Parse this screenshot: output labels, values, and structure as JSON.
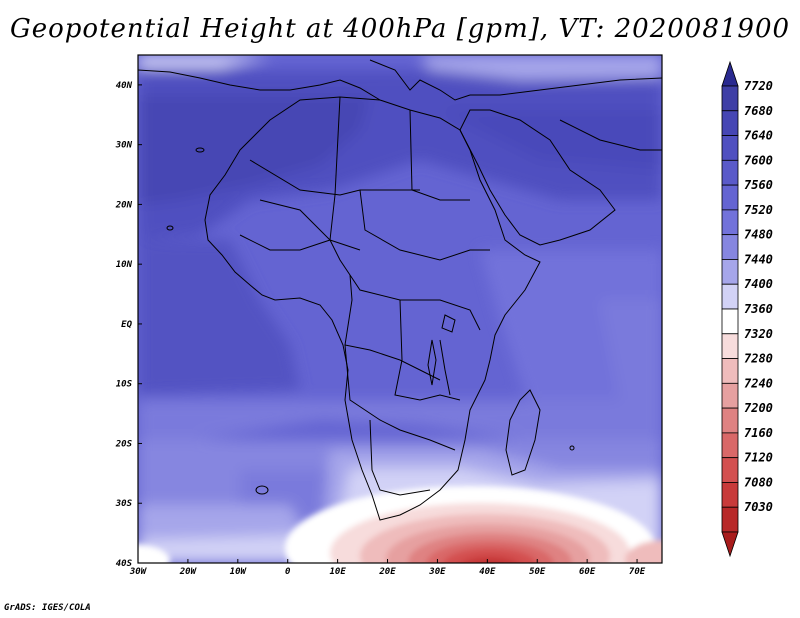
{
  "title": "Geopotential Height at 400hPa [gpm], VT: 2020081900",
  "credit": "GrADS: IGES/COLA",
  "map": {
    "lon_range": [
      -30,
      75
    ],
    "lat_range": [
      -40,
      45
    ],
    "lon_ticks": [
      {
        "value": -30,
        "label": "30W"
      },
      {
        "value": -20,
        "label": "20W"
      },
      {
        "value": -10,
        "label": "10W"
      },
      {
        "value": 0,
        "label": "0"
      },
      {
        "value": 10,
        "label": "10E"
      },
      {
        "value": 20,
        "label": "20E"
      },
      {
        "value": 30,
        "label": "30E"
      },
      {
        "value": 40,
        "label": "40E"
      },
      {
        "value": 50,
        "label": "50E"
      },
      {
        "value": 60,
        "label": "60E"
      },
      {
        "value": 70,
        "label": "70E"
      }
    ],
    "lat_ticks": [
      {
        "value": 40,
        "label": "40N"
      },
      {
        "value": 30,
        "label": "30N"
      },
      {
        "value": 20,
        "label": "20N"
      },
      {
        "value": 10,
        "label": "10N"
      },
      {
        "value": 0,
        "label": "EQ"
      },
      {
        "value": -10,
        "label": "10S"
      },
      {
        "value": -20,
        "label": "20S"
      },
      {
        "value": -30,
        "label": "30S"
      },
      {
        "value": -40,
        "label": "40S"
      }
    ]
  },
  "colorbar": {
    "levels": [
      {
        "label": "7720",
        "color": "#3f3fa6"
      },
      {
        "label": "7680",
        "color": "#4646b4"
      },
      {
        "label": "7640",
        "color": "#5050c0"
      },
      {
        "label": "7600",
        "color": "#5a5ac9"
      },
      {
        "label": "7560",
        "color": "#6464d2"
      },
      {
        "label": "7520",
        "color": "#7272da"
      },
      {
        "label": "7480",
        "color": "#8686e0"
      },
      {
        "label": "7440",
        "color": "#a6a6ea"
      },
      {
        "label": "7400",
        "color": "#d2d2f6"
      },
      {
        "label": "7360",
        "color": "#ffffff"
      },
      {
        "label": "7320",
        "color": "#f7dcdc"
      },
      {
        "label": "7280",
        "color": "#efbcbc"
      },
      {
        "label": "7240",
        "color": "#e6a0a0"
      },
      {
        "label": "7200",
        "color": "#df8282"
      },
      {
        "label": "7160",
        "color": "#d96868"
      },
      {
        "label": "7120",
        "color": "#d35050"
      },
      {
        "label": "7080",
        "color": "#c83a3a"
      },
      {
        "label": "7030",
        "color": "#b82828"
      }
    ],
    "top_color": "#2a2a90",
    "bottom_color": "#a81c1c"
  }
}
